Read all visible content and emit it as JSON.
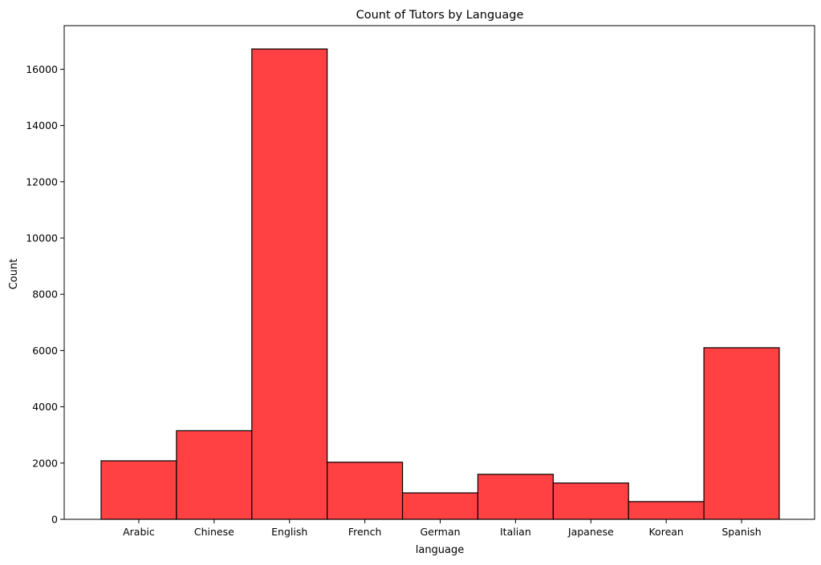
{
  "chart_data": {
    "type": "bar",
    "title": "Count of Tutors by Language",
    "xlabel": "language",
    "ylabel": "Count",
    "categories": [
      "Arabic",
      "Chinese",
      "English",
      "French",
      "German",
      "Italian",
      "Japanese",
      "Korean",
      "Spanish"
    ],
    "values": [
      2080,
      3150,
      16720,
      2030,
      940,
      1600,
      1290,
      630,
      6100
    ],
    "ylim": [
      0,
      17550
    ],
    "yticks": [
      0,
      2000,
      4000,
      6000,
      8000,
      10000,
      12000,
      14000,
      16000
    ],
    "grid": false,
    "bar_color": "#ff4143",
    "bar_edge_color": "#000000"
  }
}
